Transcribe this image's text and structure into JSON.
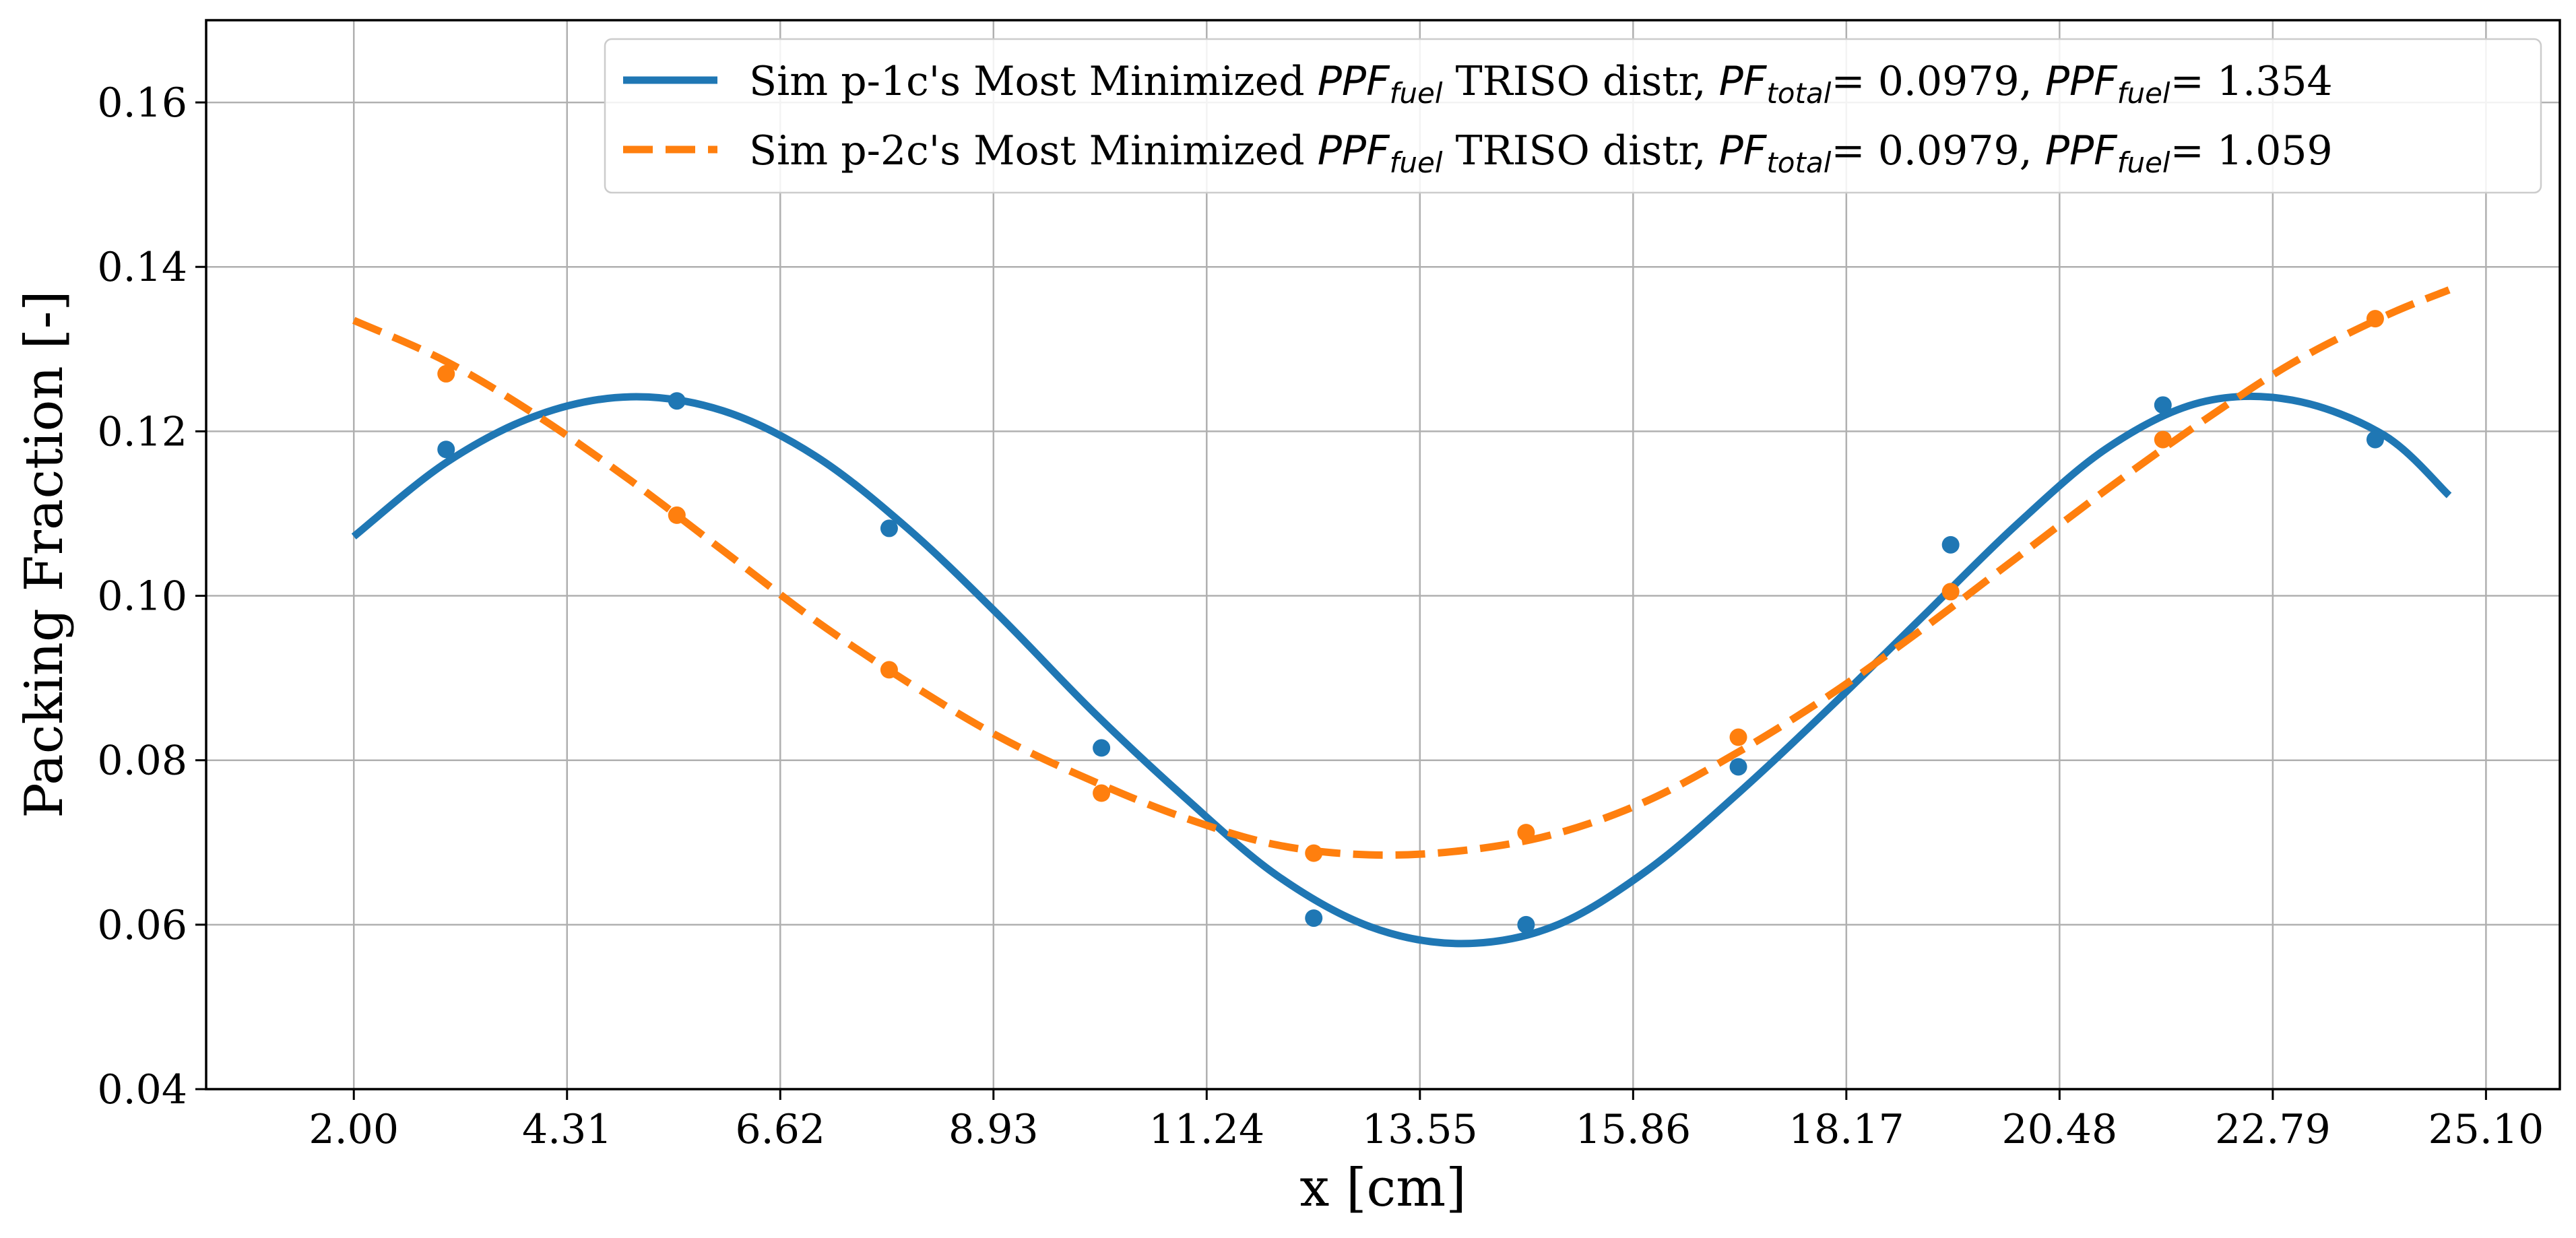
{
  "chart_data": {
    "type": "line",
    "xlabel": "x [cm]",
    "ylabel": "Packing Fraction [-]",
    "xlim": [
      0.4,
      25.9
    ],
    "ylim": [
      0.04,
      0.17
    ],
    "xticks": [
      2.0,
      4.31,
      6.62,
      8.93,
      11.24,
      13.55,
      15.86,
      18.17,
      20.48,
      22.79,
      25.1
    ],
    "xtick_labels": [
      "2.00",
      "4.31",
      "6.62",
      "8.93",
      "11.24",
      "13.55",
      "15.86",
      "18.17",
      "20.48",
      "22.79",
      "25.10"
    ],
    "yticks": [
      0.04,
      0.06,
      0.08,
      0.1,
      0.12,
      0.14,
      0.16
    ],
    "ytick_labels": [
      "0.04",
      "0.06",
      "0.08",
      "0.10",
      "0.12",
      "0.14",
      "0.16"
    ],
    "grid": true,
    "legend_position": "top-right",
    "series": [
      {
        "name": "Sim p-1c's Most Minimized PPF_fuel TRISO distr, PF_total= 0.0979, PPF_fuel= 1.354",
        "legend": {
          "pre": "Sim p-1c's Most Minimized ",
          "math1": "PPF",
          "sub1": "fuel",
          "mid1": " TRISO distr, ",
          "math2": "PF",
          "sub2": "total",
          "mid2": "= 0.0979, ",
          "math3": "PPF",
          "sub3": "fuel",
          "post": "= 1.354"
        },
        "color": "#1f77b4",
        "style": "solid",
        "curve": {
          "x": [
            2.0,
            3.0,
            4.0,
            5.0,
            6.0,
            7.0,
            8.0,
            9.0,
            10.0,
            11.0,
            12.0,
            13.0,
            14.0,
            15.0,
            16.0,
            17.0,
            18.0,
            19.0,
            20.0,
            21.0,
            22.0,
            23.0,
            24.0,
            24.7
          ],
          "y": [
            0.1072,
            0.1162,
            0.122,
            0.1242,
            0.1225,
            0.117,
            0.1082,
            0.0975,
            0.086,
            0.0755,
            0.066,
            0.0598,
            0.0577,
            0.0598,
            0.0665,
            0.076,
            0.0865,
            0.0975,
            0.1085,
            0.118,
            0.1235,
            0.1238,
            0.1195,
            0.1122
          ]
        },
        "markers": {
          "x": [
            3.0,
            5.5,
            7.8,
            10.1,
            12.4,
            14.7,
            17.0,
            19.3,
            21.6,
            23.9
          ],
          "y": [
            0.1178,
            0.1237,
            0.1082,
            0.0815,
            0.0608,
            0.06,
            0.0792,
            0.1062,
            0.1232,
            0.119
          ]
        }
      },
      {
        "name": "Sim p-2c's Most Minimized PPF_fuel TRISO distr, PF_total= 0.0979, PPF_fuel= 1.059",
        "legend": {
          "pre": "Sim p-2c's Most Minimized ",
          "math1": "PPF",
          "sub1": "fuel",
          "mid1": " TRISO distr, ",
          "math2": "PF",
          "sub2": "total",
          "mid2": "= 0.0979, ",
          "math3": "PPF",
          "sub3": "fuel",
          "post": "= 1.059"
        },
        "color": "#ff7f0e",
        "style": "dashed",
        "curve": {
          "x": [
            2.0,
            3.0,
            4.0,
            5.0,
            6.0,
            7.0,
            8.0,
            9.0,
            10.0,
            11.0,
            12.0,
            13.0,
            14.0,
            15.0,
            16.0,
            17.0,
            18.0,
            19.0,
            20.0,
            21.0,
            22.0,
            23.0,
            24.0,
            24.7
          ],
          "y": [
            0.1335,
            0.1285,
            0.1218,
            0.114,
            0.1055,
            0.097,
            0.0895,
            0.0828,
            0.0775,
            0.073,
            0.0697,
            0.0685,
            0.069,
            0.071,
            0.075,
            0.081,
            0.088,
            0.096,
            0.1045,
            0.113,
            0.121,
            0.1283,
            0.134,
            0.1372
          ]
        },
        "markers": {
          "x": [
            3.0,
            5.5,
            7.8,
            10.1,
            12.4,
            14.7,
            17.0,
            19.3,
            21.6,
            23.9
          ],
          "y": [
            0.127,
            0.1098,
            0.091,
            0.076,
            0.0687,
            0.0712,
            0.0828,
            0.1005,
            0.119,
            0.1337
          ]
        }
      }
    ]
  }
}
